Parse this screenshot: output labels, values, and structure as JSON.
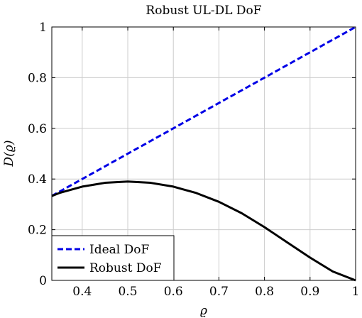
{
  "chart_data": {
    "type": "line",
    "title": "Robust UL-DL DoF",
    "xlabel": "ϱ",
    "ylabel": "D(ϱ)",
    "xlim": [
      0.3333,
      1.0
    ],
    "ylim": [
      0,
      1
    ],
    "xticks": [
      0.4,
      0.5,
      0.6,
      0.7,
      0.8,
      0.9,
      1.0
    ],
    "xtick_labels": [
      "0.4",
      "0.5",
      "0.6",
      "0.7",
      "0.8",
      "0.9",
      "1"
    ],
    "yticks": [
      0,
      0.2,
      0.4,
      0.6,
      0.8,
      1.0
    ],
    "ytick_labels": [
      "0",
      "0.2",
      "0.4",
      "0.6",
      "0.8",
      "1"
    ],
    "grid": true,
    "legend_position": "bottom-left",
    "series": [
      {
        "name": "Ideal DoF",
        "color": "#0000e6",
        "style": "dashed",
        "x": [
          0.3333,
          1.0
        ],
        "y": [
          0.3333,
          1.0
        ]
      },
      {
        "name": "Robust DoF",
        "color": "#000000",
        "style": "solid",
        "x": [
          0.3333,
          0.35,
          0.4,
          0.45,
          0.5,
          0.55,
          0.6,
          0.65,
          0.7,
          0.75,
          0.8,
          0.85,
          0.9,
          0.95,
          1.0
        ],
        "y": [
          0.333,
          0.345,
          0.37,
          0.385,
          0.39,
          0.385,
          0.37,
          0.345,
          0.31,
          0.265,
          0.21,
          0.15,
          0.09,
          0.035,
          0.0
        ]
      }
    ]
  }
}
